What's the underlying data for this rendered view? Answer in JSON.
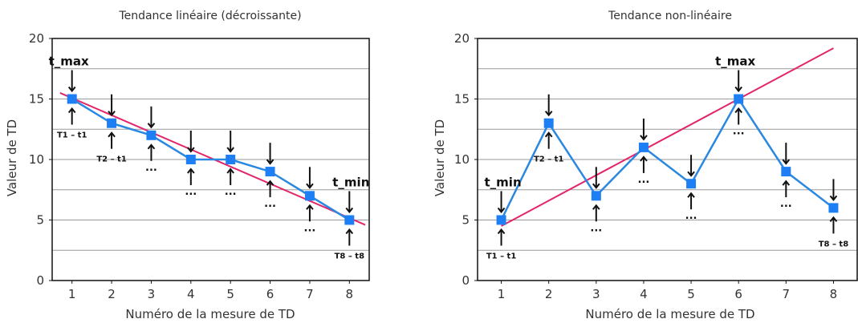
{
  "colors": {
    "series": "#2b88e0",
    "marker": "#1e7ff5",
    "trend": "#e3256b",
    "grid": "#9a9a9a"
  },
  "chart_data": [
    {
      "type": "line",
      "title": "Tendance linéaire (décroissante)",
      "xlabel": "Numéro de la mesure de TD",
      "ylabel": "Valeur de TD",
      "x": [
        1,
        2,
        3,
        4,
        5,
        6,
        7,
        8
      ],
      "series": [
        {
          "values": [
            15,
            13,
            12,
            10,
            10,
            9,
            7,
            5
          ]
        }
      ],
      "trendline": {
        "x": [
          0.7,
          8.4
        ],
        "y": [
          15.5,
          4.6
        ]
      },
      "xlim": [
        0.5,
        8.5
      ],
      "ylim": [
        0,
        20
      ],
      "yticks": [
        0,
        5,
        10,
        15,
        20
      ],
      "grid": true,
      "annotations": {
        "t_max": {
          "text": "t_max",
          "x": 1
        },
        "t_min": {
          "text": "t_min",
          "x": 8
        },
        "first_label": {
          "text": "T1 – t1",
          "x": 1
        },
        "second_label": {
          "text": "T2 – t1",
          "x": 2
        },
        "last_label": {
          "text": "T8 – t8",
          "x": 8
        },
        "ellipsis": "..."
      }
    },
    {
      "type": "line",
      "title": "Tendance non-linéaire",
      "xlabel": "Numéro de la mesure de TD",
      "ylabel": "Valeur de TD",
      "x": [
        1,
        2,
        3,
        4,
        5,
        6,
        7,
        8
      ],
      "series": [
        {
          "values": [
            5,
            13,
            7,
            11,
            8,
            15,
            9,
            6
          ]
        }
      ],
      "trendline": {
        "x": [
          1,
          8
        ],
        "y": [
          4.5,
          19.2
        ]
      },
      "xlim": [
        0.5,
        8.5
      ],
      "ylim": [
        0,
        20
      ],
      "yticks": [
        0,
        5,
        10,
        15,
        20
      ],
      "grid": true,
      "annotations": {
        "t_max": {
          "text": "t_max",
          "x": 6
        },
        "t_min": {
          "text": "t_min",
          "x": 1
        },
        "first_label": {
          "text": "T1 – t1",
          "x": 1
        },
        "second_label": {
          "text": "T2 – t1",
          "x": 2
        },
        "last_label": {
          "text": "T8 – t8",
          "x": 8
        },
        "ellipsis": "..."
      }
    }
  ]
}
